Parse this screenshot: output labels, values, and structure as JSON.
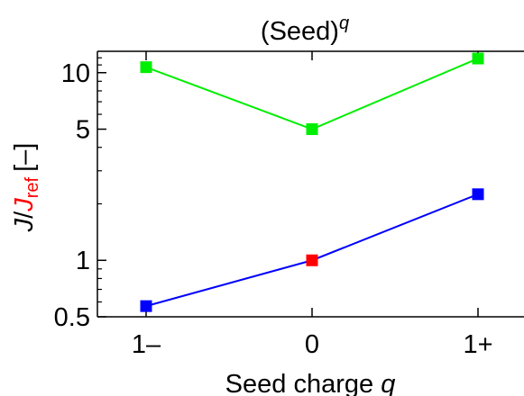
{
  "chart_data": {
    "type": "line",
    "title": {
      "base": "(Seed)",
      "sup": "q"
    },
    "xlabel": {
      "text": "Seed charge ",
      "var": "q"
    },
    "ylabel": {
      "num": "J",
      "slash": "/",
      "den": "J",
      "den_sub": "ref",
      "unit": "[–]"
    },
    "categories": [
      "1–",
      "0",
      "1+"
    ],
    "y_scale": "log",
    "ylim": [
      0.5,
      13
    ],
    "yticks": [
      {
        "value": 0.5,
        "label": "0.5"
      },
      {
        "value": 1,
        "label": "1"
      },
      {
        "value": 5,
        "label": "5"
      },
      {
        "value": 10,
        "label": "10"
      }
    ],
    "grid": false,
    "series": [
      {
        "values": [
          10.7,
          5.0,
          11.9
        ],
        "color": "#00ee00"
      },
      {
        "values": [
          0.57,
          1.0,
          2.25
        ],
        "color": "#0000ff"
      }
    ],
    "reference_point": {
      "x": "0",
      "value": 1.0,
      "color": "#ff0000"
    },
    "colors": {
      "ylabel_den": "#ff0000",
      "axis": "#000000"
    }
  }
}
